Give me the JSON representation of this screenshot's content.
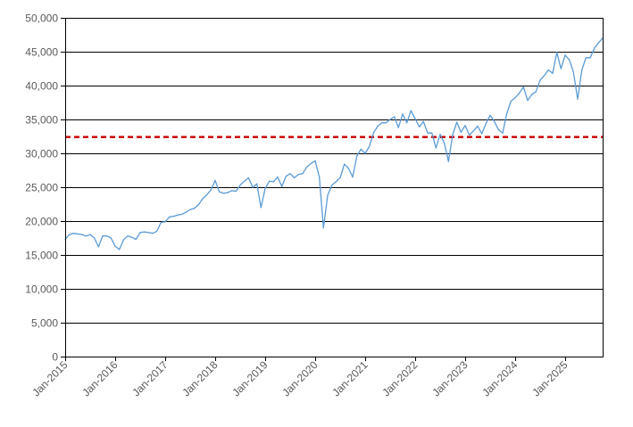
{
  "chart_data": {
    "type": "line",
    "title": "",
    "xlabel": "",
    "ylabel": "",
    "ylim": [
      0,
      50000
    ],
    "yticks": [
      0,
      5000,
      10000,
      15000,
      20000,
      25000,
      30000,
      35000,
      40000,
      45000,
      50000
    ],
    "ytick_labels": [
      "0",
      "5,000",
      "10,000",
      "15,000",
      "20,000",
      "25,000",
      "30,000",
      "35,000",
      "40,000",
      "45,000",
      "50,000"
    ],
    "xlim": [
      "2015-01",
      "2025-10"
    ],
    "xticks": [
      "2015-01",
      "2016-01",
      "2017-01",
      "2018-01",
      "2019-01",
      "2020-01",
      "2021-01",
      "2022-01",
      "2023-01",
      "2024-01",
      "2025-01"
    ],
    "xtick_labels": [
      "Jan-2015",
      "Jan-2016",
      "Jan-2017",
      "Jan-2018",
      "Jan-2019",
      "Jan-2020",
      "Jan-2021",
      "Jan-2022",
      "Jan-2023",
      "Jan-2024",
      "Jan-2025"
    ],
    "grid": "horizontal",
    "legend": "none",
    "reference_line": {
      "y": 32400,
      "color": "#cc0000",
      "style": "dashed"
    },
    "series": [
      {
        "color": "#5b9bd5",
        "points": [
          [
            "2015-01",
            17300
          ],
          [
            "2015-02",
            18000
          ],
          [
            "2015-03",
            18200
          ],
          [
            "2015-04",
            18100
          ],
          [
            "2015-05",
            18000
          ],
          [
            "2015-06",
            17800
          ],
          [
            "2015-07",
            18000
          ],
          [
            "2015-08",
            17500
          ],
          [
            "2015-09",
            16200
          ],
          [
            "2015-10",
            17800
          ],
          [
            "2015-11",
            17800
          ],
          [
            "2015-12",
            17500
          ],
          [
            "2016-01",
            16300
          ],
          [
            "2016-02",
            15800
          ],
          [
            "2016-03",
            17200
          ],
          [
            "2016-04",
            17800
          ],
          [
            "2016-05",
            17600
          ],
          [
            "2016-06",
            17300
          ],
          [
            "2016-07",
            18300
          ],
          [
            "2016-08",
            18400
          ],
          [
            "2016-09",
            18300
          ],
          [
            "2016-10",
            18200
          ],
          [
            "2016-11",
            18500
          ],
          [
            "2016-12",
            19800
          ],
          [
            "2017-01",
            19900
          ],
          [
            "2017-02",
            20600
          ],
          [
            "2017-03",
            20700
          ],
          [
            "2017-04",
            20900
          ],
          [
            "2017-05",
            21000
          ],
          [
            "2017-06",
            21300
          ],
          [
            "2017-07",
            21700
          ],
          [
            "2017-08",
            21900
          ],
          [
            "2017-09",
            22400
          ],
          [
            "2017-10",
            23300
          ],
          [
            "2017-11",
            23900
          ],
          [
            "2017-12",
            24600
          ],
          [
            "2018-01",
            26000
          ],
          [
            "2018-02",
            24300
          ],
          [
            "2018-03",
            24100
          ],
          [
            "2018-04",
            24200
          ],
          [
            "2018-05",
            24500
          ],
          [
            "2018-06",
            24400
          ],
          [
            "2018-07",
            25300
          ],
          [
            "2018-08",
            25900
          ],
          [
            "2018-09",
            26400
          ],
          [
            "2018-10",
            25000
          ],
          [
            "2018-11",
            25500
          ],
          [
            "2018-12",
            22000
          ],
          [
            "2019-01",
            24800
          ],
          [
            "2019-02",
            25900
          ],
          [
            "2019-03",
            25800
          ],
          [
            "2019-04",
            26500
          ],
          [
            "2019-05",
            25100
          ],
          [
            "2019-06",
            26600
          ],
          [
            "2019-07",
            27000
          ],
          [
            "2019-08",
            26400
          ],
          [
            "2019-09",
            26900
          ],
          [
            "2019-10",
            27000
          ],
          [
            "2019-11",
            28000
          ],
          [
            "2019-12",
            28500
          ],
          [
            "2020-01",
            28900
          ],
          [
            "2020-02",
            26500
          ],
          [
            "2020-03",
            19000
          ],
          [
            "2020-04",
            23800
          ],
          [
            "2020-05",
            25300
          ],
          [
            "2020-06",
            25800
          ],
          [
            "2020-07",
            26400
          ],
          [
            "2020-08",
            28400
          ],
          [
            "2020-09",
            27800
          ],
          [
            "2020-10",
            26500
          ],
          [
            "2020-11",
            29600
          ],
          [
            "2020-12",
            30600
          ],
          [
            "2021-01",
            30000
          ],
          [
            "2021-02",
            31000
          ],
          [
            "2021-03",
            33000
          ],
          [
            "2021-04",
            34000
          ],
          [
            "2021-05",
            34500
          ],
          [
            "2021-06",
            34500
          ],
          [
            "2021-07",
            35000
          ],
          [
            "2021-08",
            35400
          ],
          [
            "2021-09",
            33800
          ],
          [
            "2021-10",
            35800
          ],
          [
            "2021-11",
            34500
          ],
          [
            "2021-12",
            36300
          ],
          [
            "2022-01",
            35100
          ],
          [
            "2022-02",
            33900
          ],
          [
            "2022-03",
            34700
          ],
          [
            "2022-04",
            33000
          ],
          [
            "2022-05",
            33000
          ],
          [
            "2022-06",
            30800
          ],
          [
            "2022-07",
            32800
          ],
          [
            "2022-08",
            31500
          ],
          [
            "2022-09",
            28800
          ],
          [
            "2022-10",
            32700
          ],
          [
            "2022-11",
            34600
          ],
          [
            "2022-12",
            33100
          ],
          [
            "2023-01",
            34100
          ],
          [
            "2023-02",
            32700
          ],
          [
            "2023-03",
            33300
          ],
          [
            "2023-04",
            34000
          ],
          [
            "2023-05",
            32900
          ],
          [
            "2023-06",
            34400
          ],
          [
            "2023-07",
            35600
          ],
          [
            "2023-08",
            34700
          ],
          [
            "2023-09",
            33500
          ],
          [
            "2023-10",
            33000
          ],
          [
            "2023-11",
            35900
          ],
          [
            "2023-12",
            37700
          ],
          [
            "2024-01",
            38200
          ],
          [
            "2024-02",
            38900
          ],
          [
            "2024-03",
            39800
          ],
          [
            "2024-04",
            37800
          ],
          [
            "2024-05",
            38700
          ],
          [
            "2024-06",
            39100
          ],
          [
            "2024-07",
            40800
          ],
          [
            "2024-08",
            41500
          ],
          [
            "2024-09",
            42300
          ],
          [
            "2024-10",
            41800
          ],
          [
            "2024-11",
            44900
          ],
          [
            "2024-12",
            42500
          ],
          [
            "2025-01",
            44500
          ],
          [
            "2025-02",
            43800
          ],
          [
            "2025-03",
            42000
          ],
          [
            "2025-04",
            38000
          ],
          [
            "2025-05",
            42300
          ],
          [
            "2025-06",
            44100
          ],
          [
            "2025-07",
            44100
          ],
          [
            "2025-08",
            45500
          ],
          [
            "2025-09",
            46300
          ],
          [
            "2025-10",
            47000
          ]
        ]
      }
    ]
  }
}
